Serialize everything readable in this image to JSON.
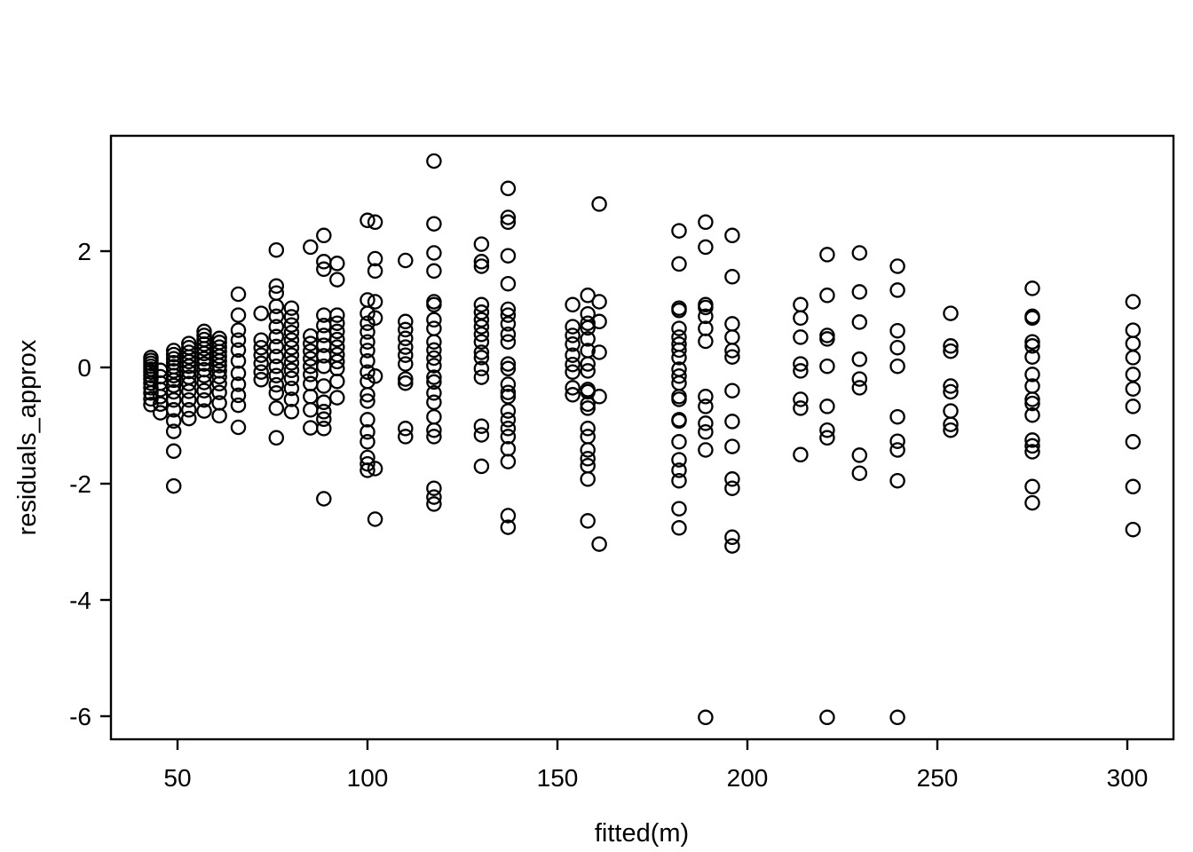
{
  "figure": {
    "background": "#ffffff",
    "foreground": "#000000"
  },
  "chart_data": {
    "type": "scatter",
    "title": "",
    "xlabel": "fitted(m)",
    "ylabel": "residuals_approx",
    "x_ticks": [
      50,
      100,
      150,
      200,
      250,
      300
    ],
    "y_ticks": [
      -6,
      -4,
      -2,
      0,
      2
    ],
    "xlim": [
      32.5,
      312
    ],
    "ylim": [
      -6.4,
      4.0
    ],
    "grid": false,
    "legend": "none",
    "marker": "open-circle",
    "marker_color": "#000000",
    "columns": [
      {
        "fitted": 43,
        "residuals": [
          0.17,
          0.12,
          0.07,
          0.02,
          -0.03,
          -0.08,
          -0.14,
          -0.2,
          -0.27,
          -0.35,
          -0.44,
          -0.54,
          -0.64
        ]
      },
      {
        "fitted": 45.5,
        "residuals": [
          -0.05,
          -0.16,
          -0.27,
          -0.38,
          -0.5,
          -0.63,
          -0.78
        ]
      },
      {
        "fitted": 49,
        "residuals": [
          0.29,
          0.22,
          0.15,
          0.08,
          0.01,
          -0.06,
          -0.14,
          -0.22,
          -0.31,
          -0.42,
          -0.56,
          -0.73,
          -0.92,
          -1.1,
          -1.44,
          -2.04
        ]
      },
      {
        "fitted": 53,
        "residuals": [
          0.41,
          0.34,
          0.26,
          0.18,
          0.1,
          0.02,
          -0.07,
          -0.17,
          -0.28,
          -0.41,
          -0.56,
          -0.73,
          -0.88
        ]
      },
      {
        "fitted": 57,
        "residuals": [
          0.62,
          0.55,
          0.48,
          0.4,
          0.32,
          0.24,
          0.15,
          0.06,
          -0.04,
          -0.14,
          -0.26,
          -0.4,
          -0.56,
          -0.75
        ]
      },
      {
        "fitted": 61,
        "residuals": [
          0.5,
          0.43,
          0.35,
          0.27,
          0.19,
          0.11,
          0.03,
          -0.06,
          -0.16,
          -0.28,
          -0.43,
          -0.61,
          -0.83
        ]
      },
      {
        "fitted": 66,
        "residuals": [
          1.26,
          0.9,
          0.64,
          0.47,
          0.3,
          0.11,
          -0.1,
          -0.29,
          -0.48,
          -0.65,
          -1.03
        ]
      },
      {
        "fitted": 72,
        "residuals": [
          0.93,
          0.47,
          0.34,
          0.21,
          0.07,
          -0.08,
          -0.21
        ]
      },
      {
        "fitted": 76,
        "residuals": [
          2.02,
          1.4,
          1.28,
          1.05,
          0.88,
          0.7,
          0.53,
          0.36,
          0.19,
          0.02,
          -0.14,
          -0.3,
          -0.44,
          -0.7,
          -1.21
        ]
      },
      {
        "fitted": 80,
        "residuals": [
          1.02,
          0.87,
          0.73,
          0.6,
          0.47,
          0.34,
          0.21,
          0.08,
          -0.05,
          -0.19,
          -0.36,
          -0.55,
          -0.76
        ]
      },
      {
        "fitted": 85,
        "residuals": [
          2.07,
          0.54,
          0.41,
          0.28,
          0.15,
          0.02,
          -0.12,
          -0.28,
          -0.5,
          -0.73,
          -1.04
        ]
      },
      {
        "fitted": 88.5,
        "residuals": [
          2.27,
          1.82,
          1.69,
          0.9,
          0.72,
          0.55,
          0.38,
          0.2,
          0.02,
          -0.32,
          -0.6,
          -0.76,
          -0.89,
          -1.05,
          -2.26
        ]
      },
      {
        "fitted": 92,
        "residuals": [
          1.79,
          1.51,
          0.9,
          0.76,
          0.62,
          0.48,
          0.35,
          0.22,
          0.1,
          -0.02,
          -0.24,
          -0.52
        ]
      },
      {
        "fitted": 100,
        "residuals": [
          2.53,
          1.16,
          0.93,
          0.76,
          0.61,
          0.44,
          0.29,
          0.11,
          -0.08,
          -0.24,
          -0.47,
          -0.58,
          -0.9,
          -1.11,
          -1.28,
          -1.55,
          -1.66,
          -1.77
        ]
      },
      {
        "fitted": 102,
        "residuals": [
          2.5,
          1.87,
          1.66,
          1.13,
          0.85,
          -0.15,
          -1.74,
          -2.61
        ]
      },
      {
        "fitted": 110,
        "residuals": [
          1.84,
          0.79,
          0.65,
          0.5,
          0.35,
          0.21,
          0.06,
          -0.2,
          -0.27,
          -1.05,
          -1.19
        ]
      },
      {
        "fitted": 117.5,
        "residuals": [
          3.55,
          2.47,
          1.97,
          1.66,
          1.13,
          1.08,
          0.82,
          0.67,
          0.44,
          0.3,
          0.16,
          0.03,
          -0.17,
          -0.25,
          -0.44,
          -0.6,
          -0.85,
          -1.08,
          -1.19,
          -2.08,
          -2.23,
          -2.35
        ]
      },
      {
        "fitted": 130,
        "residuals": [
          2.12,
          1.82,
          1.74,
          1.08,
          0.95,
          0.82,
          0.7,
          0.57,
          0.44,
          0.26,
          0.17,
          -0.02,
          -0.17,
          -1.01,
          -1.16,
          -1.7
        ]
      },
      {
        "fitted": 137,
        "residuals": [
          3.08,
          2.58,
          2.5,
          1.92,
          1.44,
          1.0,
          0.9,
          0.75,
          0.57,
          0.44,
          0.06,
          -0.02,
          -0.29,
          -0.43,
          -0.5,
          -0.75,
          -0.9,
          -1.05,
          -1.19,
          -1.4,
          -1.62,
          -2.55,
          -2.75
        ]
      },
      {
        "fitted": 154,
        "residuals": [
          1.08,
          0.7,
          0.55,
          0.4,
          0.21,
          0.05,
          -0.08,
          -0.35,
          -0.47
        ]
      },
      {
        "fitted": 158,
        "residuals": [
          1.24,
          0.92,
          0.76,
          0.68,
          0.49,
          0.29,
          0.06,
          -0.06,
          -0.38,
          -0.42,
          -0.63,
          -0.7,
          -1.05,
          -1.19,
          -1.42,
          -1.57,
          -1.69,
          -1.92,
          -2.64
        ]
      },
      {
        "fitted": 161,
        "residuals": [
          2.81,
          1.13,
          0.79,
          0.26,
          -0.5,
          -3.04
        ]
      },
      {
        "fitted": 182,
        "residuals": [
          2.35,
          1.78,
          1.02,
          0.98,
          0.67,
          0.52,
          0.4,
          0.3,
          0.17,
          -0.03,
          -0.15,
          -0.27,
          -0.5,
          -0.55,
          -0.9,
          -0.92,
          -1.28,
          -1.59,
          -1.77,
          -1.95,
          -2.43,
          -2.76
        ]
      },
      {
        "fitted": 189,
        "residuals": [
          2.5,
          2.07,
          1.08,
          1.03,
          0.88,
          0.67,
          0.45,
          -0.5,
          -0.67,
          -0.96,
          -1.11,
          -1.42,
          -6.02
        ]
      },
      {
        "fitted": 196,
        "residuals": [
          2.27,
          1.56,
          0.75,
          0.52,
          0.29,
          0.18,
          -0.4,
          -0.93,
          -1.36,
          -1.92,
          -2.08,
          -2.92,
          -3.07
        ]
      },
      {
        "fitted": 214,
        "residuals": [
          1.08,
          0.85,
          0.52,
          0.06,
          -0.06,
          -0.55,
          -0.7,
          -1.5
        ]
      },
      {
        "fitted": 221,
        "residuals": [
          1.94,
          1.24,
          0.55,
          0.49,
          0.02,
          -0.67,
          -1.08,
          -1.21,
          -6.02
        ]
      },
      {
        "fitted": 229.5,
        "residuals": [
          1.97,
          1.3,
          0.78,
          0.14,
          -0.2,
          -0.35,
          -1.51,
          -1.82
        ]
      },
      {
        "fitted": 239.5,
        "residuals": [
          1.74,
          1.33,
          0.63,
          0.34,
          0.02,
          -0.85,
          -1.27,
          -1.42,
          -1.95,
          -6.02
        ]
      },
      {
        "fitted": 253.5,
        "residuals": [
          0.93,
          0.37,
          0.28,
          -0.32,
          -0.42,
          -0.75,
          -0.98,
          -1.08
        ]
      },
      {
        "fitted": 275,
        "residuals": [
          1.36,
          0.88,
          0.85,
          0.44,
          0.37,
          0.18,
          -0.12,
          -0.32,
          -0.55,
          -0.62,
          -0.82,
          -1.25,
          -1.35,
          -1.45,
          -2.05,
          -2.33
        ]
      },
      {
        "fitted": 301.5,
        "residuals": [
          1.13,
          0.64,
          0.41,
          0.17,
          -0.12,
          -0.37,
          -0.67,
          -1.28,
          -2.05,
          -2.79
        ]
      }
    ]
  }
}
